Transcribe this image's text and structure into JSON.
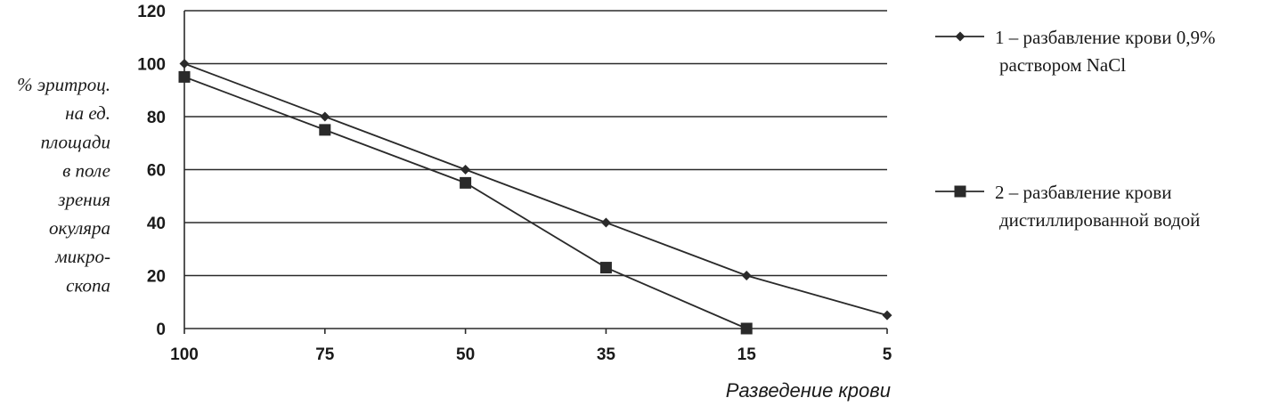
{
  "chart_data": {
    "type": "line",
    "categories": [
      "100",
      "75",
      "50",
      "35",
      "15",
      "5"
    ],
    "ylim": [
      0,
      120
    ],
    "yticks": [
      "0",
      "20",
      "40",
      "60",
      "80",
      "100",
      "120"
    ],
    "grid": true,
    "legend_position": "right",
    "ylabel_lines": [
      "% эритроц.",
      "на ед.",
      "площади",
      "в поле",
      "зрения",
      "окуляра",
      "микро-",
      "скопа"
    ],
    "xlabel": "Разведение крови",
    "series": [
      {
        "name": "1 – разбавление крови 0,9% раствором NaCl",
        "legend_lines": [
          "1 – разбавление крови 0,9%",
          "раствором NaCl"
        ],
        "marker": "diamond",
        "values": [
          100,
          80,
          60,
          40,
          20,
          5
        ]
      },
      {
        "name": "2 – разбавление крови дистиллированной водой",
        "legend_lines": [
          "2 – разбавление крови",
          "дистиллированной водой"
        ],
        "marker": "square",
        "values": [
          95,
          75,
          55,
          23,
          0,
          null
        ]
      }
    ],
    "colors": {
      "line": "#2a2a2a",
      "grid": "#2a2a2a",
      "text": "#1a1a1a"
    }
  }
}
